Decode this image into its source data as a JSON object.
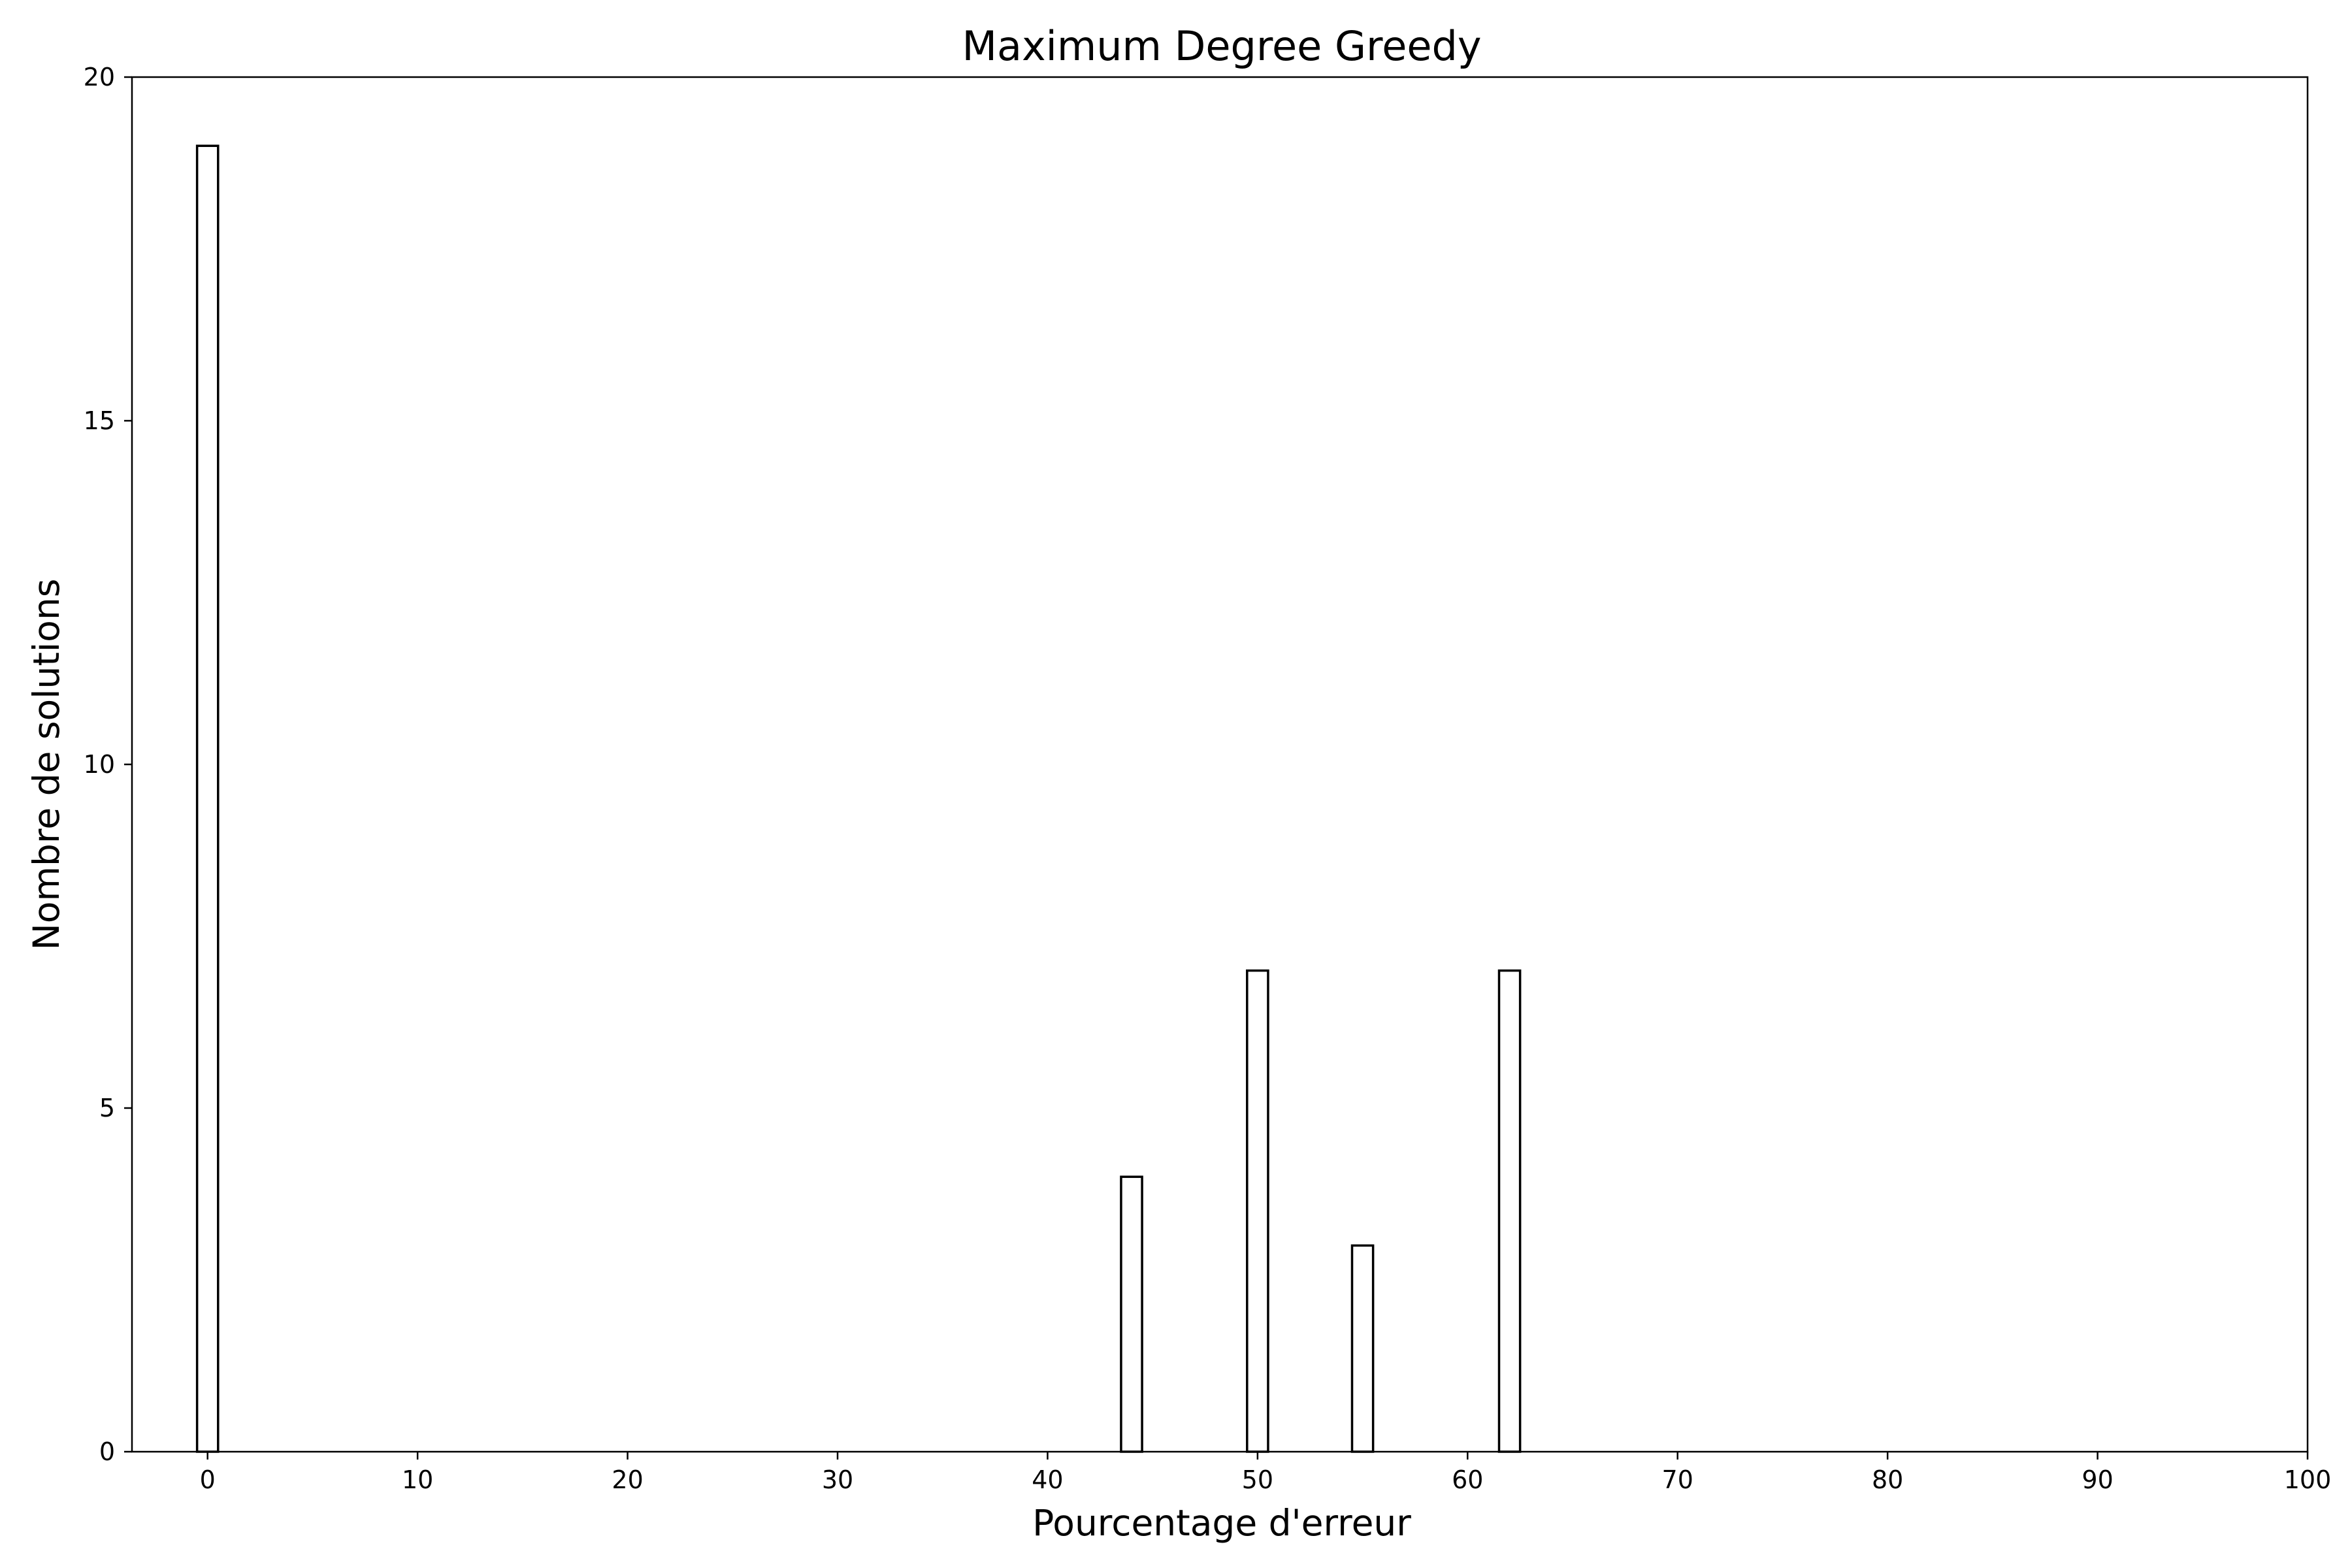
{
  "chart_data": {
    "type": "bar",
    "title": "Maximum Degree Greedy",
    "xlabel": "Pourcentage d'erreur",
    "ylabel": "Nombre de solutions",
    "xlim": [
      -3.6,
      100
    ],
    "ylim": [
      0,
      20
    ],
    "xticks": [
      0,
      10,
      20,
      30,
      40,
      50,
      60,
      70,
      80,
      90,
      100
    ],
    "yticks": [
      0,
      5,
      10,
      15,
      20
    ],
    "bar_width": 1.0,
    "grid": false,
    "bars": [
      {
        "x": 0,
        "value": 19
      },
      {
        "x": 44,
        "value": 4
      },
      {
        "x": 50,
        "value": 7
      },
      {
        "x": 55,
        "value": 3
      },
      {
        "x": 62,
        "value": 7
      }
    ]
  }
}
